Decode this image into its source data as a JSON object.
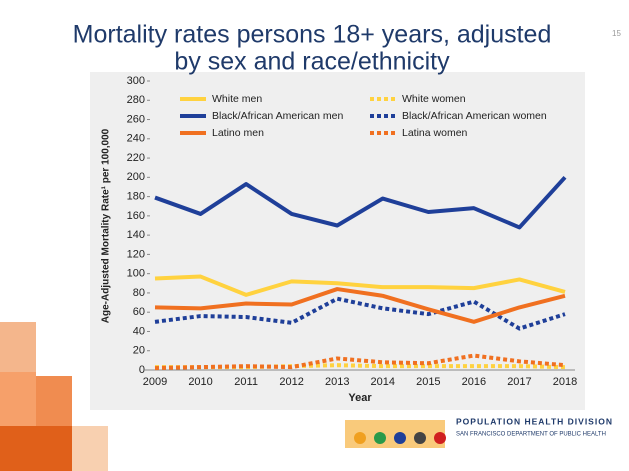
{
  "slide": {
    "page_number": "15",
    "logo_title": "POPULATION HEALTH DIVISION",
    "logo_subtitle": "SAN FRANCISCO DEPARTMENT OF PUBLIC HEALTH"
  },
  "chart_data": {
    "type": "line",
    "title": [
      "Mortality rates persons 18+ years, adjusted",
      "by sex and race/ethnicity"
    ],
    "y_label": "Age-Adjusted Mortality Rate¹ per 100,000",
    "x_label": "Year",
    "categories": [
      "2009",
      "2010",
      "2011",
      "2012",
      "2013",
      "2014",
      "2015",
      "2016",
      "2017",
      "2018"
    ],
    "series": [
      {
        "name": "White men",
        "color": "#ffd23f",
        "style": "solid",
        "values": [
          95,
          97,
          78,
          92,
          90,
          86,
          86,
          85,
          94,
          81
        ]
      },
      {
        "name": "White women",
        "color": "#ffd23f",
        "style": "dotted",
        "values": [
          3,
          3,
          3,
          4,
          5,
          4,
          4,
          4,
          4,
          3
        ]
      },
      {
        "name": "Black/African American men",
        "color": "#1f3f99",
        "style": "solid",
        "values": [
          179,
          162,
          193,
          162,
          150,
          178,
          164,
          168,
          148,
          200
        ]
      },
      {
        "name": "Black/African American women",
        "color": "#1f3f99",
        "style": "dotted",
        "values": [
          50,
          56,
          55,
          49,
          74,
          64,
          58,
          71,
          43,
          58
        ]
      },
      {
        "name": "Latino men",
        "color": "#f07020",
        "style": "solid",
        "values": [
          65,
          64,
          69,
          68,
          84,
          77,
          63,
          50,
          65,
          77
        ]
      },
      {
        "name": "Latina women",
        "color": "#f07020",
        "style": "dotted",
        "values": [
          2,
          3,
          4,
          3,
          12,
          8,
          7,
          15,
          9,
          5
        ]
      }
    ],
    "ylim": [
      0,
      300
    ],
    "yticks": [
      0,
      20,
      40,
      60,
      80,
      100,
      120,
      140,
      160,
      180,
      200,
      220,
      240,
      260,
      280,
      300
    ],
    "grid": false
  }
}
